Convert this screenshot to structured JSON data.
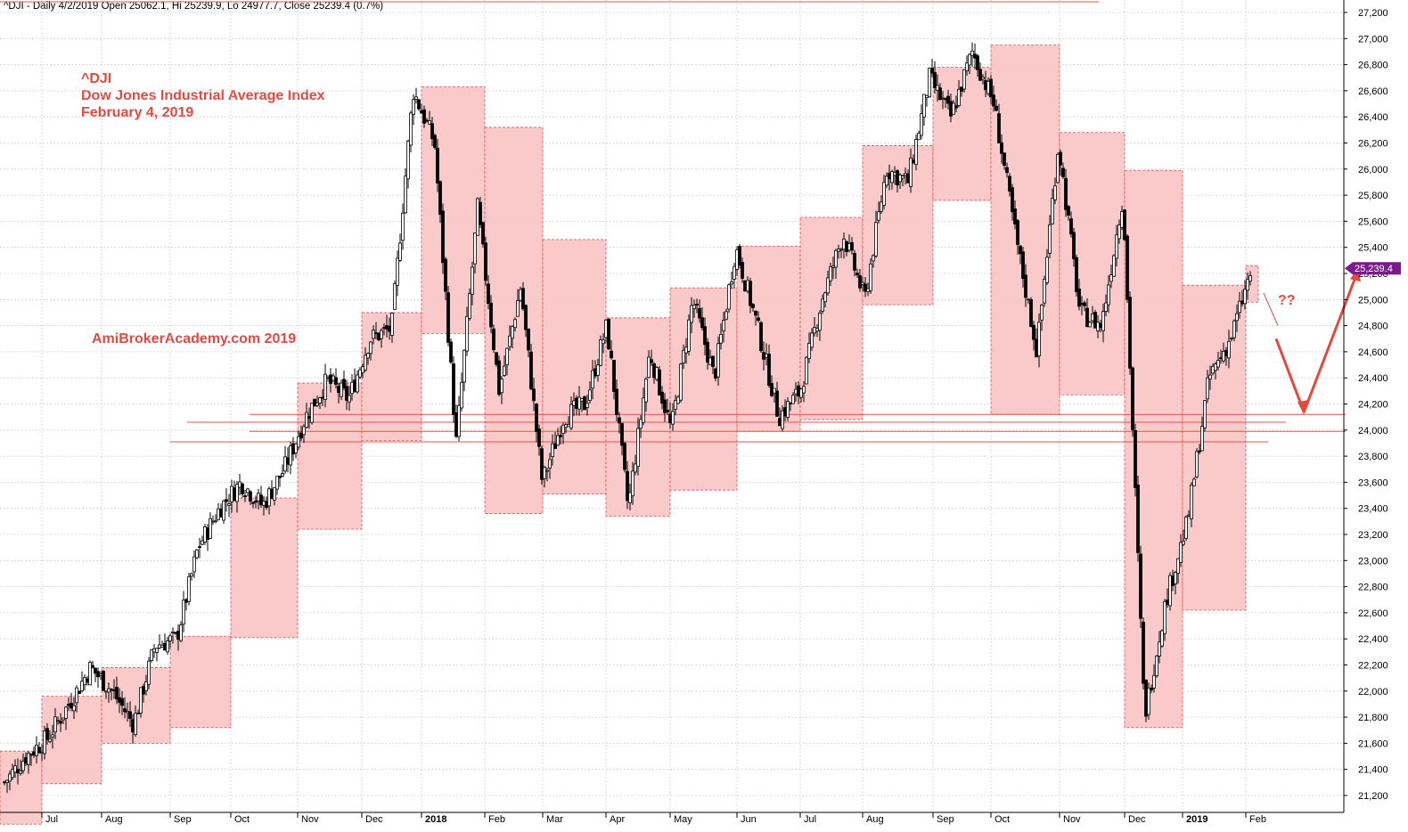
{
  "header": {
    "caption": "^DJI - Daily 4/2/2019 Open 25062.1, Hi 25239.9, Lo 24977.7, Close 25239.4 (0.7%)"
  },
  "annotations": {
    "ticker": "^DJI",
    "index_name": "Dow Jones Industrial Average Index",
    "date": "February 4, 2019",
    "watermark": "AmiBrokerAcademy.com  2019",
    "question": "??"
  },
  "colors": {
    "box_fill": "#f9c4c4",
    "box_border": "#e05050",
    "support_line": "#e8504a",
    "arrow": "#e2493f",
    "candle": "#000000",
    "grid": "#d0d0d0",
    "last_price_bg": "#7a1a8c"
  },
  "chart_data": {
    "type": "candlestick",
    "title": "^DJI - Daily",
    "ylim": [
      21000,
      27300
    ],
    "y_ticks": [
      21200,
      21400,
      21600,
      21800,
      22000,
      22200,
      22400,
      22600,
      22800,
      23000,
      23200,
      23400,
      23600,
      23800,
      24000,
      24200,
      24400,
      24600,
      24800,
      25000,
      25200,
      25400,
      25600,
      25800,
      26000,
      26200,
      26400,
      26600,
      26800,
      27000,
      27200
    ],
    "x_month_labels": [
      "Jul",
      "Aug",
      "Sep",
      "Oct",
      "Nov",
      "Dec",
      "2018",
      "Feb",
      "Mar",
      "Apr",
      "May",
      "Jun",
      "Jul",
      "Aug",
      "Sep",
      "Oct",
      "Nov",
      "Dec",
      "2019",
      "Feb"
    ],
    "x_period": "2017-06 to 2019-02 (daily)",
    "last_price": {
      "label": "25,239.4",
      "value": 25239.4
    },
    "last_bar": {
      "date": "4/2/2019",
      "open": 25062.1,
      "high": 25239.9,
      "low": 24977.7,
      "close": 25239.4,
      "change_pct": 0.7
    },
    "monthly_ranges": [
      {
        "month": "Jun 2017",
        "high": 21540,
        "low": 20980
      },
      {
        "month": "Jul 2017",
        "high": 21960,
        "low": 21290
      },
      {
        "month": "Aug 2017",
        "high": 22180,
        "low": 21600
      },
      {
        "month": "Sep 2017",
        "high": 22420,
        "low": 21720
      },
      {
        "month": "Oct 2017",
        "high": 23480,
        "low": 22410
      },
      {
        "month": "Nov 2017",
        "high": 24360,
        "low": 23240
      },
      {
        "month": "Dec 2017",
        "high": 24900,
        "low": 23920
      },
      {
        "month": "Jan 2018",
        "high": 26630,
        "low": 24740
      },
      {
        "month": "Feb 2018",
        "high": 26320,
        "low": 23360
      },
      {
        "month": "Mar 2018",
        "high": 25460,
        "low": 23510
      },
      {
        "month": "Apr 2018",
        "high": 24860,
        "low": 23340
      },
      {
        "month": "May 2018",
        "high": 25090,
        "low": 23540
      },
      {
        "month": "Jun 2018",
        "high": 25410,
        "low": 23990
      },
      {
        "month": "Jul 2018",
        "high": 25630,
        "low": 24080
      },
      {
        "month": "Aug 2018",
        "high": 26180,
        "low": 24960
      },
      {
        "month": "Sep 2018",
        "high": 26780,
        "low": 25760
      },
      {
        "month": "Oct 2018",
        "high": 26950,
        "low": 24120
      },
      {
        "month": "Nov 2018",
        "high": 26280,
        "low": 24270
      },
      {
        "month": "Dec 2018",
        "high": 25990,
        "low": 21720
      },
      {
        "month": "Jan 2019",
        "high": 25110,
        "low": 22620
      },
      {
        "month": "Feb 2019",
        "high": 25260,
        "low": 24980
      }
    ],
    "horizontal_levels": [
      24120,
      24060,
      23990,
      23910
    ],
    "forecast_path": [
      24120,
      25239
    ]
  }
}
